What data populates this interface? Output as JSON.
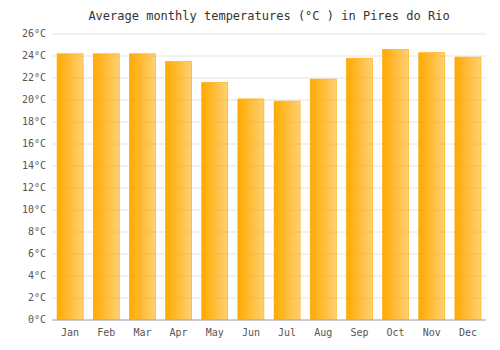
{
  "chart_data": {
    "type": "bar",
    "title": "Average monthly temperatures (°C ) in Pires do Rio",
    "categories": [
      "Jan",
      "Feb",
      "Mar",
      "Apr",
      "May",
      "Jun",
      "Jul",
      "Aug",
      "Sep",
      "Oct",
      "Nov",
      "Dec"
    ],
    "values": [
      24.2,
      24.2,
      24.2,
      23.5,
      21.6,
      20.1,
      19.9,
      21.9,
      23.8,
      24.6,
      24.3,
      23.9
    ],
    "color": "#FFAA00",
    "ylim": [
      0,
      26
    ],
    "yticks": [
      {
        "value": 0,
        "label": "0°C"
      },
      {
        "value": 2,
        "label": "2°C"
      },
      {
        "value": 4,
        "label": "4°C"
      },
      {
        "value": 6,
        "label": "6°C"
      },
      {
        "value": 8,
        "label": "8°C"
      },
      {
        "value": 10,
        "label": "10°C"
      },
      {
        "value": 12,
        "label": "12°C"
      },
      {
        "value": 14,
        "label": "14°C"
      },
      {
        "value": 16,
        "label": "16°C"
      },
      {
        "value": 18,
        "label": "18°C"
      },
      {
        "value": 20,
        "label": "20°C"
      },
      {
        "value": 22,
        "label": "22°C"
      },
      {
        "value": 24,
        "label": "24°C"
      },
      {
        "value": 26,
        "label": "26°C"
      }
    ],
    "grid": true
  }
}
